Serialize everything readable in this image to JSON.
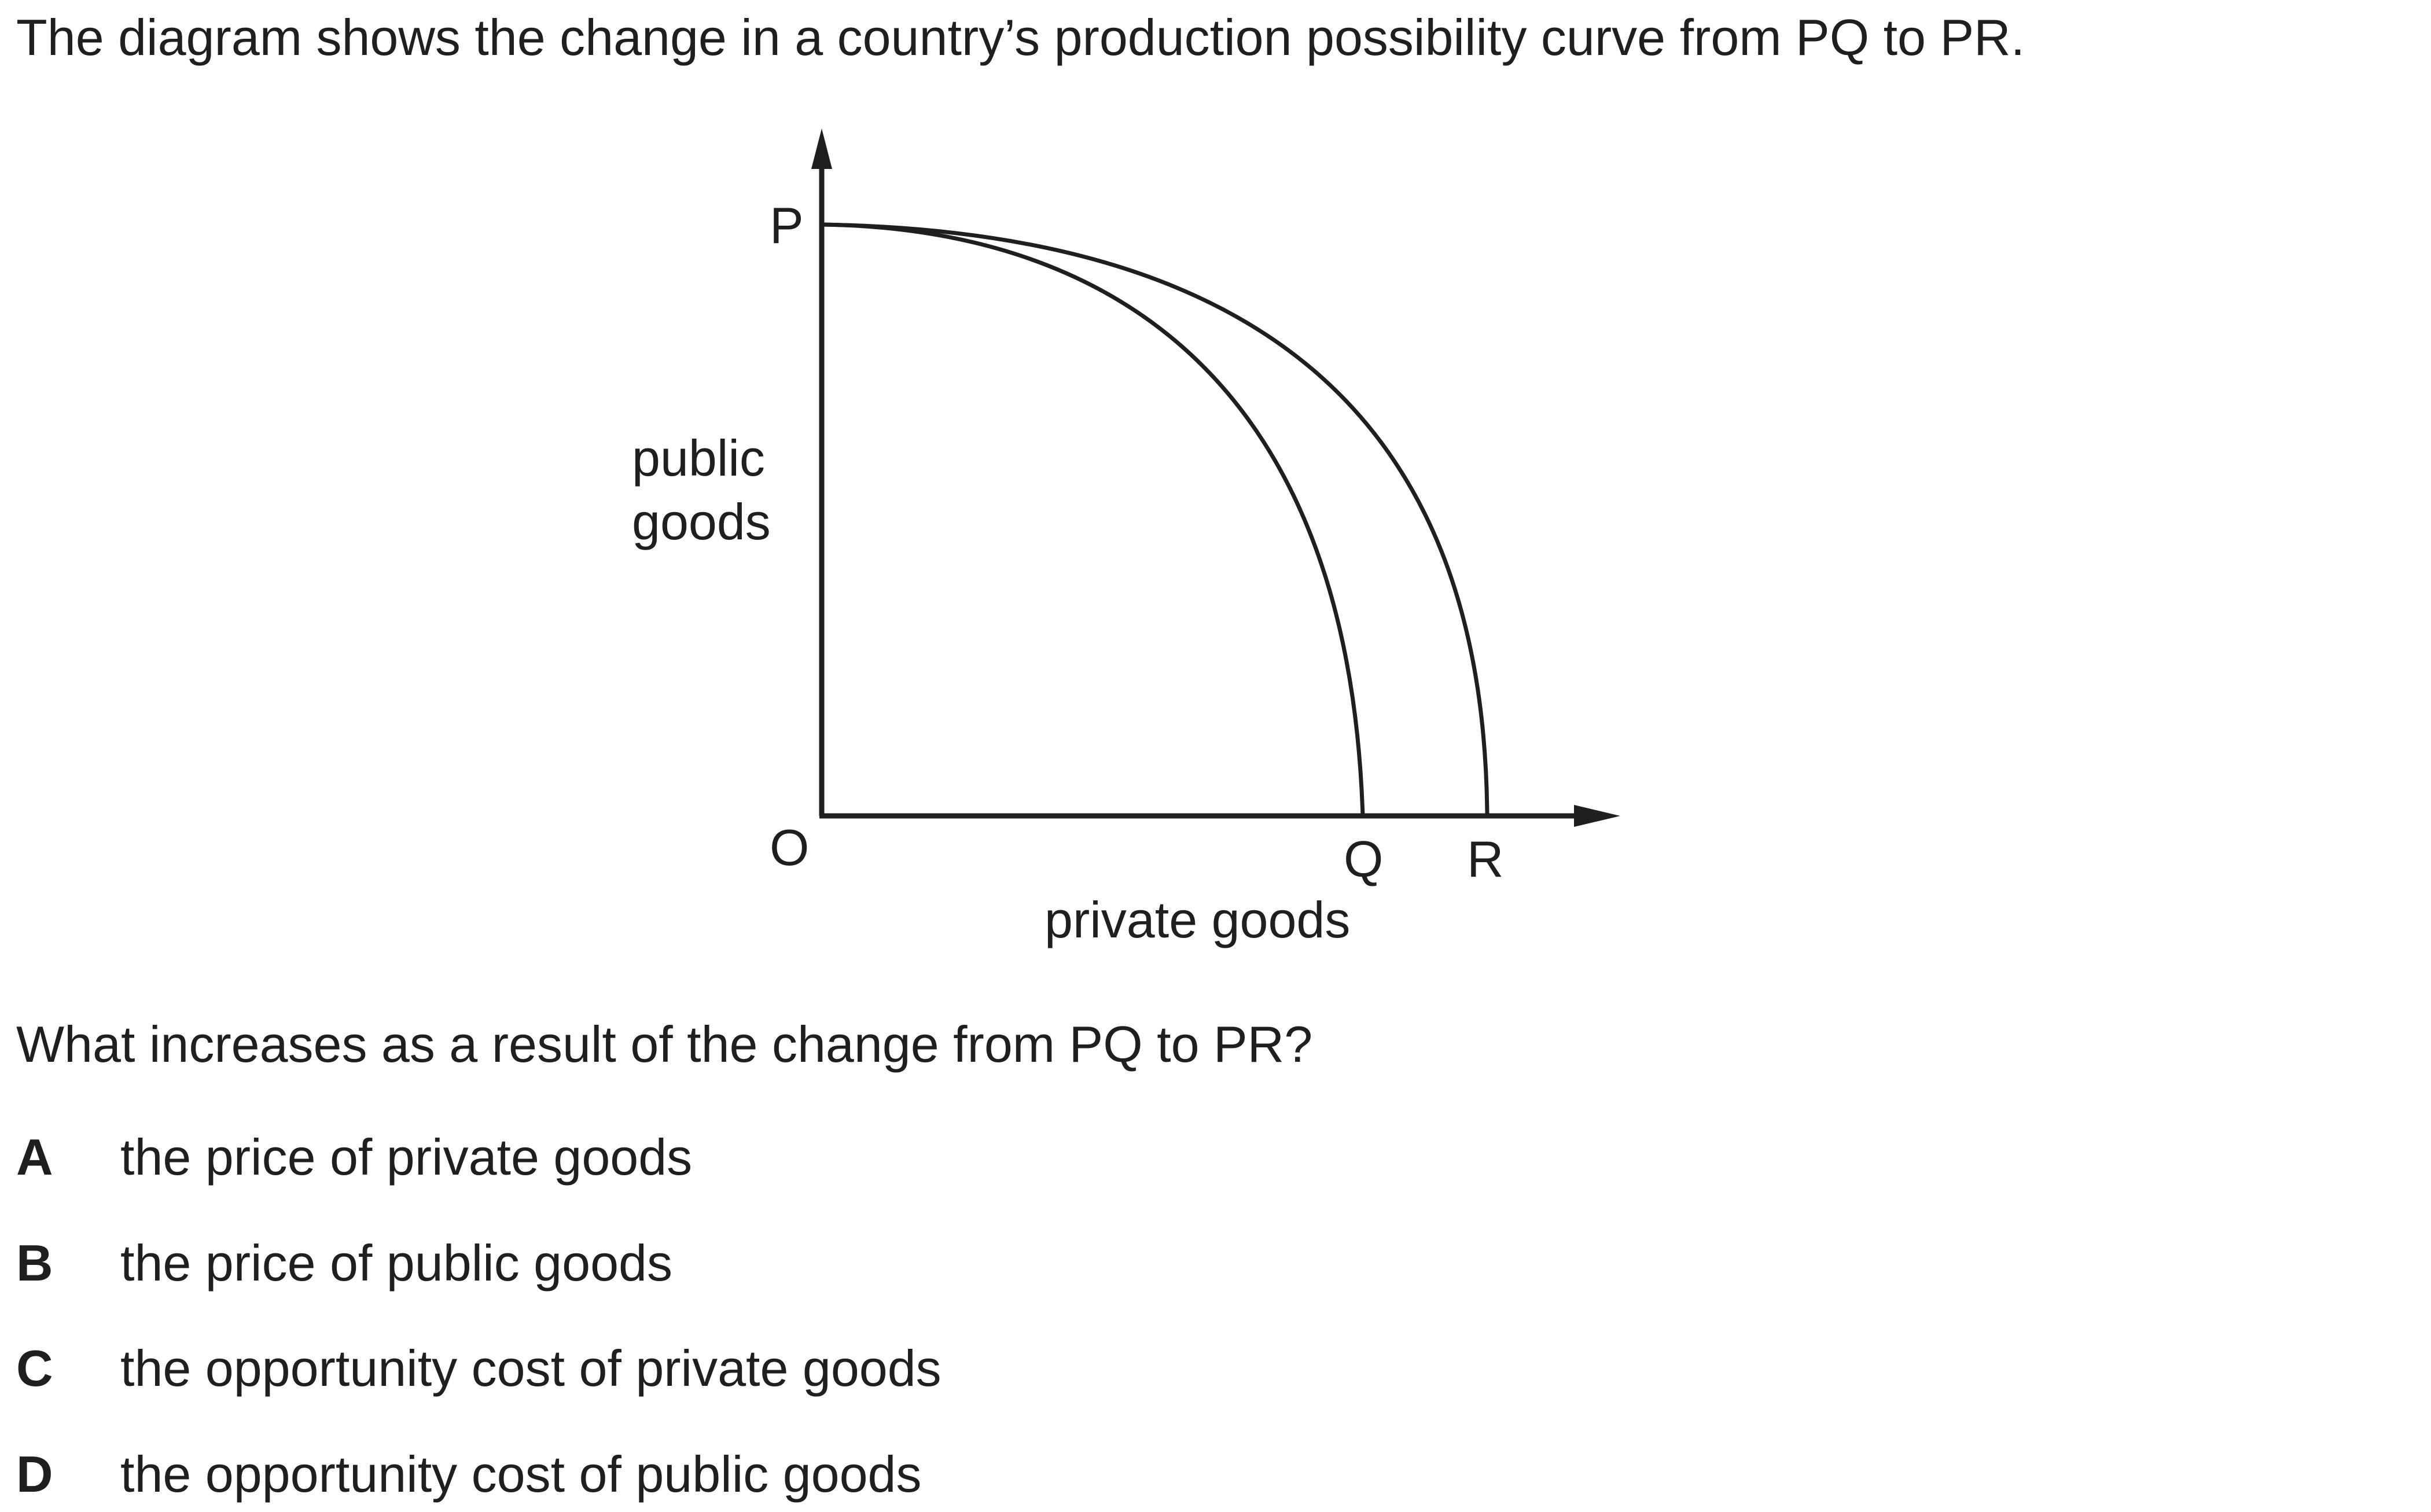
{
  "intro": "The diagram shows the change in a country’s production possibility curve from PQ to PR.",
  "diagram": {
    "label_p": "P",
    "label_o": "O",
    "label_q": "Q",
    "label_r": "R",
    "y_axis_label_line1": "public",
    "y_axis_label_line2": "goods",
    "x_axis_label": "private goods"
  },
  "question": "What increases as a result of the change from PQ to PR?",
  "options": [
    {
      "letter": "A",
      "text": "the price of private goods"
    },
    {
      "letter": "B",
      "text": "the price of public goods"
    },
    {
      "letter": "C",
      "text": "the opportunity cost of private goods"
    },
    {
      "letter": "D",
      "text": "the opportunity cost of public goods"
    }
  ]
}
